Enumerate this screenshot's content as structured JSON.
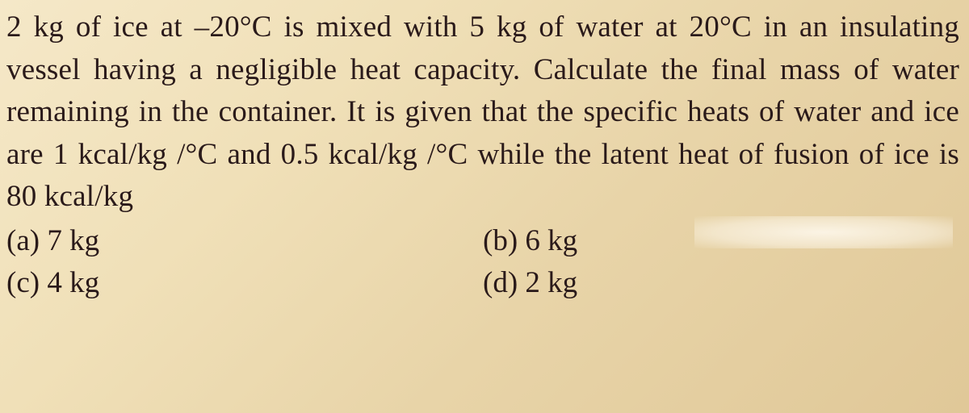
{
  "question": {
    "text": "2 kg of ice at –20°C is mixed with 5 kg of water at 20°C in an insulating vessel having a negligible heat capacity. Calculate the final mass of water remaining in the container. It is given that the specific heats of water and ice are 1 kcal/kg /°C and 0.5 kcal/kg /°C while the latent heat of fusion of ice is 80 kcal/kg",
    "font_family": "Times New Roman",
    "font_size_pt": 28,
    "text_color": "#2a1a1a",
    "background_gradient": [
      "#f5e8c8",
      "#f0e0b8",
      "#e8d4a8",
      "#e0c898"
    ],
    "line_height": 1.42,
    "text_align": "justify"
  },
  "options": {
    "a": "(a) 7 kg",
    "b": "(b) 6 kg",
    "c": "(c) 4 kg",
    "d": "(d) 2 kg",
    "layout": "2x2-grid",
    "font_size_pt": 28
  }
}
